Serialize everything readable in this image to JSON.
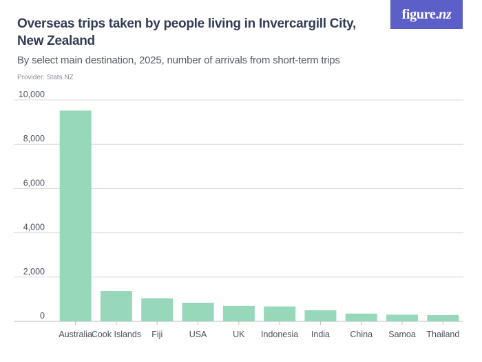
{
  "header": {
    "title": "Overseas trips taken by people living in Invercargill City, New Zealand",
    "subtitle": "By select main destination, 2025, number of arrivals from short-term trips",
    "provider": "Provider: Stats NZ"
  },
  "logo": {
    "text_main": "figure.",
    "text_nz": "nz"
  },
  "colors": {
    "bar": "#97d7ba",
    "grid": "#d8d8d8",
    "logo_bg": "#5b5fc7"
  },
  "chart_data": {
    "type": "bar",
    "title": "Overseas trips taken by people living in Invercargill City, New Zealand",
    "subtitle": "By select main destination, 2025, number of arrivals from short-term trips",
    "xlabel": "",
    "ylabel": "",
    "categories": [
      "Australia",
      "Cook Islands",
      "Fiji",
      "USA",
      "UK",
      "Indonesia",
      "India",
      "China",
      "Samoa",
      "Thailand"
    ],
    "values": [
      9520,
      1370,
      1040,
      840,
      690,
      670,
      500,
      350,
      300,
      280
    ],
    "ylim": [
      0,
      10000
    ],
    "yticks": [
      0,
      2000,
      4000,
      6000,
      8000,
      10000
    ],
    "ytick_labels": [
      "0",
      "2,000",
      "4,000",
      "6,000",
      "8,000",
      "10,000"
    ],
    "grid": true,
    "legend": "none"
  }
}
